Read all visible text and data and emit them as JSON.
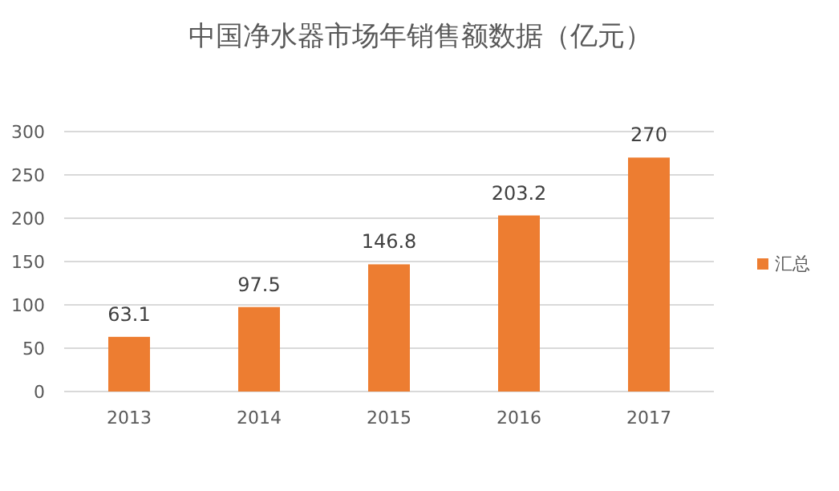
{
  "chart_data": {
    "type": "bar",
    "title": "中国净水器市场年销售额数据（亿元）",
    "categories": [
      "2013",
      "2014",
      "2015",
      "2016",
      "2017"
    ],
    "series": [
      {
        "name": "汇总",
        "color": "#ed7d31",
        "values": [
          63.1,
          97.5,
          146.8,
          203.2,
          270
        ]
      }
    ],
    "ylim": [
      0,
      300
    ],
    "yticks": [
      0,
      50,
      100,
      150,
      200,
      250,
      300
    ],
    "grid": "y",
    "legend": "right",
    "data_labels": true
  }
}
